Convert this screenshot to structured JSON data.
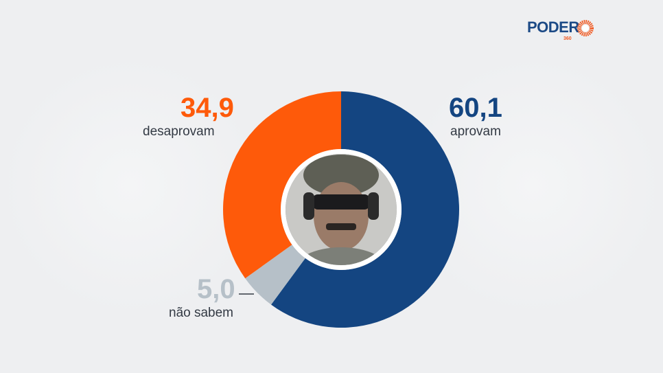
{
  "logo": {
    "text": "PODER",
    "sub": "360"
  },
  "colors": {
    "aprovam": "#144581",
    "desaprovam": "#fe5a0a",
    "nao_sabem": "#b6c0c8",
    "background": "#eeeff1"
  },
  "chart_data": {
    "type": "pie",
    "donut": true,
    "start": "top",
    "direction": "clockwise",
    "slices": [
      {
        "label": "aprovam",
        "value": 60.1,
        "display": "60,1",
        "color": "#144581"
      },
      {
        "label": "não sabem",
        "value": 5.0,
        "display": "5,0",
        "color": "#b6c0c8"
      },
      {
        "label": "desaprovam",
        "value": 34.9,
        "display": "34,9",
        "color": "#fe5a0a"
      }
    ],
    "center_image": "portrait photo"
  }
}
